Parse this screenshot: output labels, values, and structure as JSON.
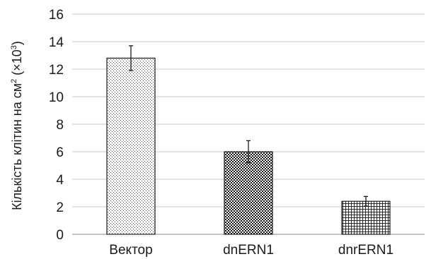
{
  "chart_data": {
    "type": "bar",
    "title": "",
    "xlabel": "",
    "ylabel": "Кількість клітин на см² (×10³)",
    "ylabel_parts": {
      "main": "Кількість клітин на см",
      "sup1": "2",
      "mid": " (×10",
      "sup2": "3",
      "end": ")"
    },
    "categories": [
      "Вектор",
      "dnERN1",
      "dnrERN1"
    ],
    "values": [
      12.8,
      6.0,
      2.4
    ],
    "errors": [
      0.9,
      0.8,
      0.35
    ],
    "ylim": [
      0,
      16
    ],
    "yticks": [
      0,
      2,
      4,
      6,
      8,
      10,
      12,
      14,
      16
    ],
    "grid": true,
    "legend": "none",
    "bar_patterns": [
      "stipple",
      "diamond-checker",
      "grid"
    ],
    "colors": {
      "bar_fill": "#ffffff",
      "bar_pattern": "#1a1a1a",
      "gridline": "#c8c8c8"
    }
  }
}
